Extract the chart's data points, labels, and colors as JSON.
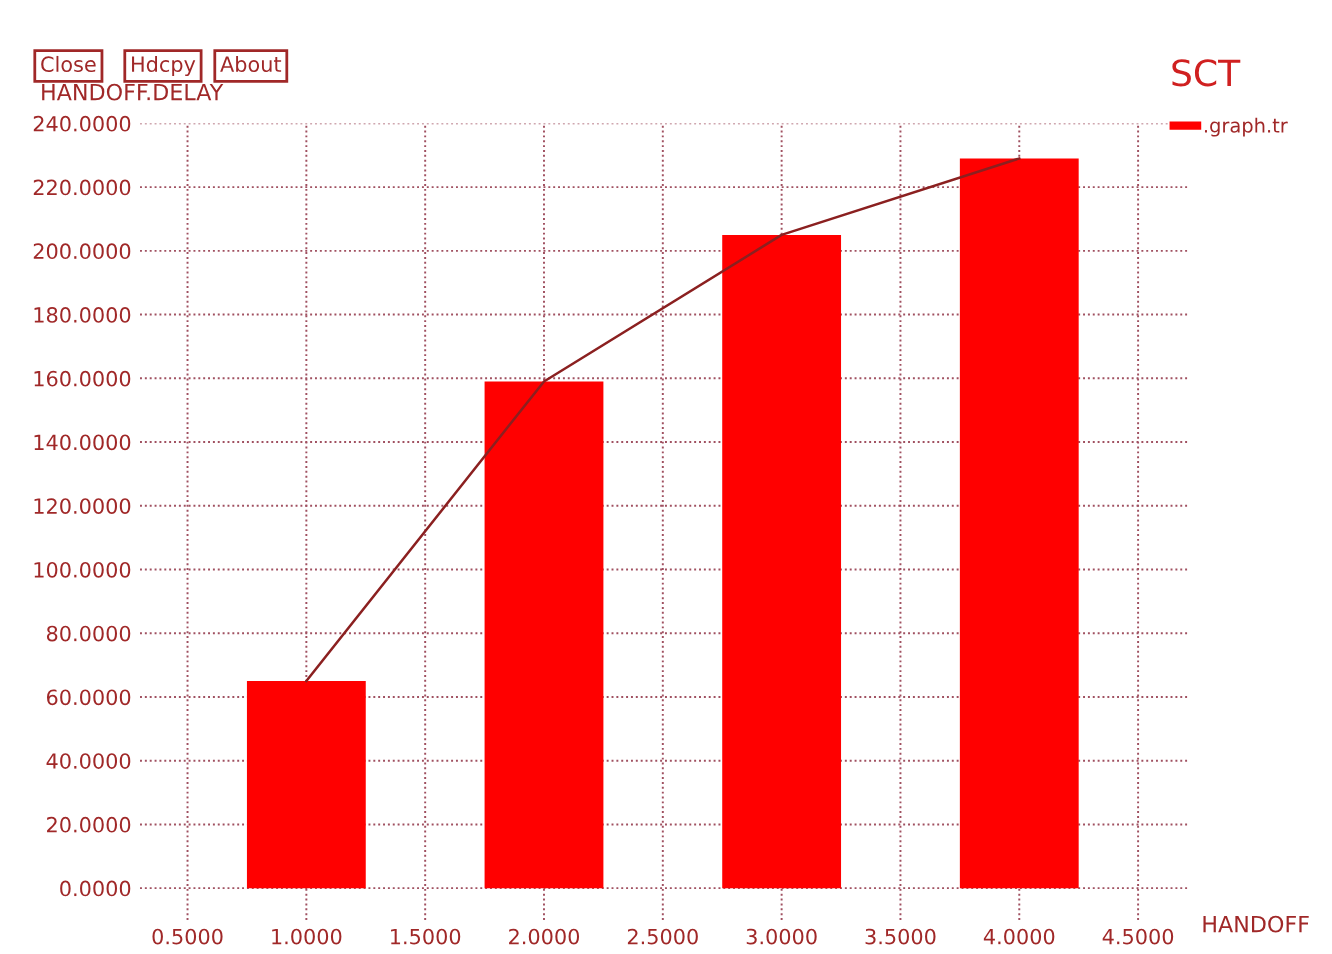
{
  "chart_data": {
    "type": "bar",
    "title": "SCT",
    "xlabel": "HANDOFF",
    "ylabel": "HANDOFF.DELAY",
    "annotations": [
      "Close",
      "Hdcpy",
      "About"
    ],
    "x": [
      1,
      2,
      3,
      4
    ],
    "series": [
      {
        "name": ".graph.tr",
        "color": "#ff0000",
        "values": [
          65,
          159,
          205,
          229
        ]
      },
      {
        "type": "line",
        "color": "#8b2020",
        "values": [
          65,
          159,
          205,
          229
        ]
      }
    ],
    "xlim": [
      0.3,
      4.71
    ],
    "ylim": [
      -10,
      240
    ],
    "xticks": [
      {
        "value": 0.5,
        "label": "0.5000"
      },
      {
        "value": 1,
        "label": "1.0000"
      },
      {
        "value": 1.5,
        "label": "1.5000"
      },
      {
        "value": 2,
        "label": "2.0000"
      },
      {
        "value": 2.5,
        "label": "2.5000"
      },
      {
        "value": 3,
        "label": "3.0000"
      },
      {
        "value": 3.5,
        "label": "3.5000"
      },
      {
        "value": 4,
        "label": "4.0000"
      },
      {
        "value": 4.5,
        "label": "4.5000"
      }
    ],
    "yticks": [
      {
        "value": 0,
        "label": "0.0000"
      },
      {
        "value": 20,
        "label": "20.0000"
      },
      {
        "value": 40,
        "label": "40.0000"
      },
      {
        "value": 60,
        "label": "60.0000"
      },
      {
        "value": 80,
        "label": "80.0000"
      },
      {
        "value": 100,
        "label": "100.0000"
      },
      {
        "value": 120,
        "label": "120.0000"
      },
      {
        "value": 140,
        "label": "140.0000"
      },
      {
        "value": 160,
        "label": "160.0000"
      },
      {
        "value": 180,
        "label": "180.0000"
      },
      {
        "value": 200,
        "label": "200.0000"
      },
      {
        "value": 220,
        "label": "220.0000"
      },
      {
        "value": 240,
        "label": "240.0000"
      }
    ],
    "grid": true,
    "legend": "top right"
  }
}
